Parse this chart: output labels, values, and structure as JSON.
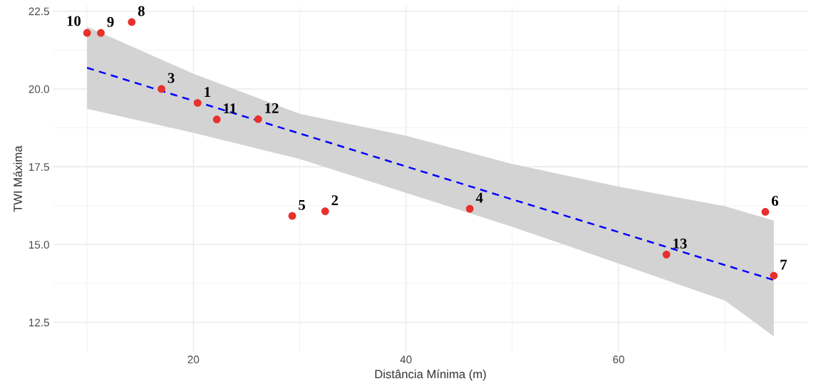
{
  "chart_data": {
    "type": "scatter",
    "xlabel": "Distância Mínima (m)",
    "ylabel": "TWI Máxima",
    "xlim": [
      6.8,
      77.8
    ],
    "ylim": [
      11.55,
      22.67
    ],
    "xticks": [
      20,
      40,
      60
    ],
    "yticks": [
      12.5,
      {
        "value": 15,
        "label": "15.0"
      },
      17.5,
      {
        "value": 20,
        "label": "20.0"
      },
      22.5
    ],
    "grid": true,
    "series": [
      {
        "marker": "circle",
        "color": "#e8302c",
        "x": [
          20.4,
          32.4,
          17.0,
          46.0,
          29.3,
          73.8,
          74.6,
          14.2,
          11.3,
          10.0,
          22.2,
          26.1,
          64.5
        ],
        "values": [
          19.55,
          16.07,
          20.0,
          16.15,
          15.92,
          16.05,
          14.0,
          22.15,
          21.8,
          21.8,
          19.02,
          19.03,
          14.68
        ]
      },
      {
        "type": "line",
        "color": "#0000ff",
        "line_style": "dashed",
        "x": [
          10.0,
          20,
          30,
          40,
          50,
          60,
          70,
          74.6
        ],
        "values": [
          20.68,
          19.62,
          18.57,
          17.51,
          16.45,
          15.4,
          14.34,
          13.86
        ],
        "lower": [
          19.36,
          18.59,
          17.75,
          16.66,
          15.57,
          14.39,
          13.2,
          12.05
        ],
        "upper": [
          22.0,
          20.49,
          19.2,
          18.5,
          17.59,
          16.86,
          16.23,
          15.77
        ]
      }
    ],
    "annotations": [
      {
        "text": "1",
        "x": 20.4,
        "y": 19.55
      },
      {
        "text": "2",
        "x": 32.4,
        "y": 16.07
      },
      {
        "text": "3",
        "x": 17.0,
        "y": 20.0
      },
      {
        "text": "4",
        "x": 46.0,
        "y": 16.15
      },
      {
        "text": "5",
        "x": 29.3,
        "y": 15.92
      },
      {
        "text": "6",
        "x": 73.8,
        "y": 16.05
      },
      {
        "text": "7",
        "x": 74.6,
        "y": 14.0
      },
      {
        "text": "8",
        "x": 14.2,
        "y": 22.15
      },
      {
        "text": "9",
        "x": 11.3,
        "y": 21.8
      },
      {
        "text": "10",
        "x": 10.0,
        "y": 21.8
      },
      {
        "text": "11",
        "x": 22.2,
        "y": 19.02
      },
      {
        "text": "12",
        "x": 26.1,
        "y": 19.03
      },
      {
        "text": "13",
        "x": 64.5,
        "y": 14.68
      }
    ]
  }
}
